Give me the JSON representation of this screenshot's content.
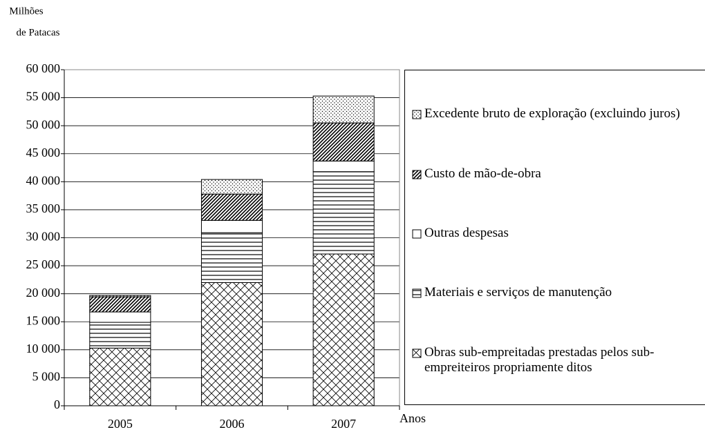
{
  "chart_data": {
    "type": "stacked_bar",
    "ylabel": [
      "Milhões",
      "de Patacas"
    ],
    "xlabel": "Anos",
    "categories": [
      "2005",
      "2006",
      "2007"
    ],
    "series": [
      {
        "name": "Obras sub-empreitadas prestadas pelos sub-empreiteiros propriamente ditos",
        "color": "#000000",
        "pattern": "crosshatch",
        "values": [
          10300,
          22000,
          27100
        ]
      },
      {
        "name": "Materiais e serviços de manutenção",
        "color": "#000000",
        "pattern": "horizontal",
        "values": [
          4600,
          8900,
          14700
        ]
      },
      {
        "name": "Outras despesas",
        "color": "#000000",
        "pattern": "none",
        "values": [
          1850,
          2200,
          1900
        ]
      },
      {
        "name": "Custo de mão-de-obra",
        "color": "#000000",
        "pattern": "diagonal",
        "values": [
          2700,
          4700,
          6800
        ]
      },
      {
        "name": "Excedente bruto de exploração (excluindo juros)",
        "color": "#000000",
        "pattern": "dots",
        "values": [
          250,
          2600,
          4800
        ]
      }
    ],
    "ylim": [
      0,
      60000
    ],
    "yticks": [
      0,
      {
        "value": 5000,
        "label": "5 000"
      },
      {
        "value": 10000,
        "label": "10 000"
      },
      {
        "value": 15000,
        "label": "15 000"
      },
      {
        "value": 20000,
        "label": "20 000"
      },
      {
        "value": 25000,
        "label": "25 000"
      },
      {
        "value": 30000,
        "label": "30 000"
      },
      {
        "value": 35000,
        "label": "35 000"
      },
      {
        "value": 40000,
        "label": "40 000"
      },
      {
        "value": 45000,
        "label": "45 000"
      },
      {
        "value": 50000,
        "label": "50 000"
      },
      {
        "value": 55000,
        "label": "55 000"
      },
      {
        "value": 60000,
        "label": "60 000"
      }
    ],
    "grid": true,
    "legend": "right"
  }
}
